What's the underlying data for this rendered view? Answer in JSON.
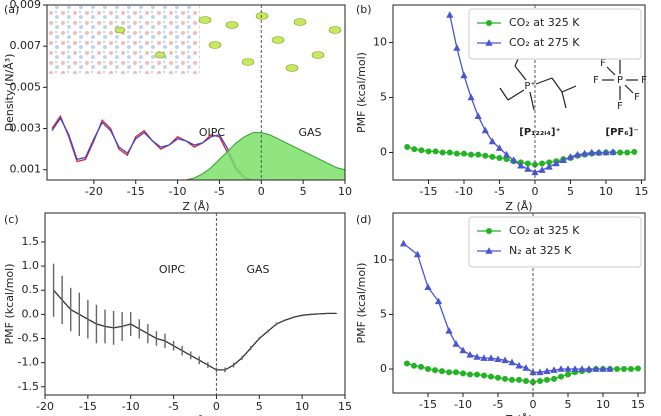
{
  "chart_data": [
    {
      "type": "line",
      "panel_label": "(a)",
      "xlabel": "Z (Å)",
      "ylabel": "Density (N/Å³)",
      "xlim": [
        -25.6,
        10
      ],
      "ylim": [
        0.0005,
        0.009
      ],
      "xticks": [
        -20,
        -15,
        -10,
        -5,
        0,
        5,
        10
      ],
      "yticks": [
        0.001,
        0.003,
        0.005,
        0.007,
        0.009
      ],
      "vline": 0,
      "annotations": [
        "OIPC",
        "GAS"
      ],
      "series": [
        {
          "color": "#d62728",
          "x": [
            -25,
            -24,
            -23,
            -22,
            -21,
            -20,
            -19,
            -18,
            -17,
            -16,
            -15,
            -14,
            -13,
            -12,
            -11,
            -10,
            -9,
            -8,
            -7,
            -6,
            -5,
            -4,
            -3,
            -2,
            -1
          ],
          "values": [
            0.003,
            0.0036,
            0.0026,
            0.0014,
            0.0015,
            0.0024,
            0.0034,
            0.003,
            0.002,
            0.0017,
            0.0026,
            0.0029,
            0.0024,
            0.002,
            0.0022,
            0.0026,
            0.0024,
            0.0021,
            0.0023,
            0.0027,
            0.0026,
            0.0018,
            0.001,
            0.0006,
            0.0005
          ]
        },
        {
          "color": "#3f48cc",
          "x": [
            -25,
            -24,
            -23,
            -22,
            -21,
            -20,
            -19,
            -18,
            -17,
            -16,
            -15,
            -14,
            -13,
            -12,
            -11,
            -10,
            -9,
            -8,
            -7,
            -6,
            -5,
            -4,
            -3,
            -2,
            -1
          ],
          "values": [
            0.0029,
            0.0035,
            0.0027,
            0.0015,
            0.0016,
            0.0025,
            0.0033,
            0.0029,
            0.0021,
            0.0018,
            0.0025,
            0.0028,
            0.0024,
            0.0021,
            0.0022,
            0.0025,
            0.0024,
            0.0022,
            0.0023,
            0.0026,
            0.0027,
            0.002,
            0.0011,
            0.0006,
            0.0005
          ]
        },
        {
          "color": "#2ca02c",
          "fill": true,
          "x": [
            -25,
            -24,
            -23,
            -22,
            -21,
            -20,
            -19,
            -18,
            -17,
            -16,
            -15,
            -14,
            -13,
            -12,
            -11,
            -10,
            -9,
            -8,
            -7,
            -6,
            -5,
            -4,
            -3,
            -2,
            -1,
            0,
            1,
            2,
            3,
            4,
            5,
            6,
            7,
            8,
            9,
            10
          ],
          "values": [
            0.0005,
            0.0005,
            0.0005,
            0.0005,
            0.0005,
            0.0005,
            0.0005,
            0.0005,
            0.0005,
            0.0005,
            0.0005,
            0.0005,
            0.0005,
            0.0005,
            0.0005,
            0.0005,
            0.0005,
            0.0006,
            0.0008,
            0.0011,
            0.0015,
            0.0019,
            0.0023,
            0.0026,
            0.0028,
            0.0028,
            0.0027,
            0.0025,
            0.0023,
            0.0021,
            0.0019,
            0.0017,
            0.0015,
            0.0013,
            0.0011,
            0.001
          ]
        }
      ]
    },
    {
      "type": "line",
      "panel_label": "(b)",
      "xlabel": "Z (Å)",
      "ylabel": "PMF (kcal/mol)",
      "xlim": [
        -20,
        15.5
      ],
      "ylim": [
        -2.5,
        13.4
      ],
      "xticks": [
        -15,
        -10,
        -5,
        0,
        5,
        10,
        15
      ],
      "yticks": [
        0,
        5,
        10
      ],
      "vline": 0,
      "legend": "upper right",
      "structure_atoms": [
        "P⁺",
        "P",
        "F",
        "F",
        "F",
        "F",
        "F",
        "F"
      ],
      "structure_labels": [
        "[P₁₂₂ᵢ₄]⁺",
        "[PF₆]⁻"
      ],
      "series": [
        {
          "name": "CO₂ at 325 K",
          "color": "#22b422",
          "marker": "circle",
          "x": [
            -18,
            -17,
            -16,
            -15,
            -14,
            -13,
            -12,
            -11,
            -10,
            -9,
            -8,
            -7,
            -6,
            -5,
            -4,
            -3,
            -2,
            -1,
            0,
            1,
            2,
            3,
            4,
            5,
            6,
            7,
            8,
            9,
            10,
            11,
            12,
            13,
            14
          ],
          "values": [
            0.5,
            0.3,
            0.2,
            0.1,
            0.1,
            0.0,
            0.0,
            -0.1,
            -0.1,
            -0.2,
            -0.2,
            -0.3,
            -0.4,
            -0.5,
            -0.6,
            -0.8,
            -0.9,
            -1.0,
            -1.1,
            -1.0,
            -0.9,
            -0.8,
            -0.6,
            -0.5,
            -0.3,
            -0.2,
            -0.1,
            -0.05,
            0,
            0,
            0,
            0,
            0.05
          ]
        },
        {
          "name": "CO₂ at 275 K",
          "color": "#4a55d0",
          "marker": "triangle",
          "x": [
            -12,
            -11,
            -10,
            -9,
            -8,
            -7,
            -6,
            -5,
            -4,
            -3,
            -2,
            -1,
            0,
            1,
            2,
            3,
            4,
            5,
            6,
            7,
            8,
            9,
            10,
            11
          ],
          "values": [
            12.5,
            9.5,
            7.0,
            5.0,
            3.3,
            2.0,
            1.0,
            0.4,
            -0.2,
            -0.7,
            -1.2,
            -1.5,
            -1.8,
            -1.6,
            -1.3,
            -1.0,
            -0.7,
            -0.4,
            -0.2,
            -0.1,
            0,
            0,
            0,
            0.05
          ]
        }
      ]
    },
    {
      "type": "line",
      "panel_label": "(c)",
      "xlabel": "Z (Å)",
      "ylabel": "PMF (kcal/mol)",
      "xlim": [
        -20,
        15
      ],
      "ylim": [
        -1.67,
        2.1
      ],
      "xticks": [
        -20,
        -15,
        -10,
        -5,
        0,
        5,
        10,
        15
      ],
      "yticks": [
        -1.5,
        {
          "value": -1,
          "label": "-1.0"
        },
        -0.5,
        {
          "value": 0,
          "label": "0.0"
        },
        0.5,
        {
          "value": 1,
          "label": "1.0"
        },
        1.5
      ],
      "vline": 0,
      "annotations": [
        "OIPC",
        "GAS"
      ],
      "series": [
        {
          "color": "#333333",
          "x": [
            -19,
            -18,
            -17,
            -16,
            -15,
            -14,
            -13,
            -12,
            -11,
            -10,
            -9,
            -8,
            -7,
            -6,
            -5,
            -4,
            -3,
            -2,
            -1,
            0,
            1,
            2,
            3,
            4,
            5,
            6,
            7,
            8,
            9,
            10,
            11,
            12,
            13,
            14
          ],
          "values": [
            0.5,
            0.3,
            0.1,
            0.0,
            -0.1,
            -0.2,
            -0.25,
            -0.28,
            -0.25,
            -0.2,
            -0.3,
            -0.4,
            -0.5,
            -0.55,
            -0.65,
            -0.75,
            -0.85,
            -0.95,
            -1.05,
            -1.15,
            -1.15,
            -1.05,
            -0.9,
            -0.7,
            -0.5,
            -0.35,
            -0.2,
            -0.12,
            -0.06,
            -0.02,
            0,
            0.01,
            0.02,
            0.02
          ],
          "errors": [
            0.55,
            0.5,
            0.45,
            0.45,
            0.4,
            0.4,
            0.35,
            0.35,
            0.3,
            0.25,
            0.2,
            0.2,
            0.15,
            0.15,
            0.1,
            0.1,
            0.08,
            0.08,
            0.06,
            0.05,
            0.05,
            0.05,
            0.04,
            0.04,
            0.03,
            0.03,
            0.03,
            0.02,
            0.02,
            0.02,
            0.02,
            0.01,
            0.01,
            0.01
          ]
        }
      ]
    },
    {
      "type": "line",
      "panel_label": "(d)",
      "xlabel": "Z (Å)",
      "ylabel": "PMF (kcal/mol)",
      "xlim": [
        -20,
        16
      ],
      "ylim": [
        -2.2,
        14.3
      ],
      "xticks": [
        -15,
        -10,
        -5,
        0,
        5,
        10,
        15
      ],
      "yticks": [
        0,
        5,
        10
      ],
      "vline": 0,
      "legend": "upper right",
      "series": [
        {
          "name": "CO₂ at 325 K",
          "color": "#22b422",
          "marker": "circle",
          "x": [
            -18,
            -17,
            -16,
            -15,
            -14,
            -13,
            -12,
            -11,
            -10,
            -9,
            -8,
            -7,
            -6,
            -5,
            -4,
            -3,
            -2,
            -1,
            0,
            1,
            2,
            3,
            4,
            5,
            6,
            7,
            8,
            9,
            10,
            11,
            12,
            13,
            14,
            15
          ],
          "values": [
            0.5,
            0.3,
            0.2,
            0.0,
            -0.1,
            -0.2,
            -0.3,
            -0.3,
            -0.4,
            -0.5,
            -0.5,
            -0.6,
            -0.7,
            -0.8,
            -0.9,
            -1.0,
            -1.0,
            -1.1,
            -1.2,
            -1.1,
            -1.0,
            -0.9,
            -0.7,
            -0.5,
            -0.3,
            -0.2,
            -0.1,
            0,
            0,
            0,
            0,
            0,
            0,
            0.05
          ]
        },
        {
          "name": "N₂ at 325 K",
          "color": "#4a55d0",
          "marker": "triangle",
          "x": [
            -18.5,
            -16.5,
            -15,
            -13.5,
            -12,
            -11,
            -10,
            -9,
            -8,
            -7,
            -6,
            -5,
            -4,
            -3,
            -2,
            -1,
            0,
            1,
            2,
            3,
            4,
            5,
            6,
            7,
            8,
            9,
            10,
            11
          ],
          "values": [
            11.5,
            10.5,
            7.5,
            6.2,
            3.5,
            2.3,
            1.7,
            1.3,
            1.1,
            1.0,
            1.0,
            0.9,
            0.8,
            0.6,
            0.3,
            0.1,
            -0.3,
            -0.3,
            -0.2,
            -0.1,
            0,
            0,
            0,
            0,
            0,
            0,
            0,
            0
          ]
        }
      ]
    }
  ]
}
